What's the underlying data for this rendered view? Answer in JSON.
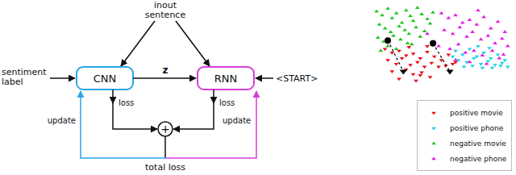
{
  "diagram": {
    "input_sentence": [
      "inout",
      "sentence"
    ],
    "sentiment_label": [
      "sentiment",
      "label"
    ],
    "cnn": "CNN",
    "rnn": "RNN",
    "z": "z",
    "start": "<START>",
    "cnn_loss": "loss",
    "rnn_loss": "loss",
    "sum": "+",
    "total_loss": "total loss",
    "cnn_update": "update",
    "rnn_update": "update"
  },
  "chart_data": {
    "type": "scatter",
    "tick_labels": false,
    "grid": false,
    "legend": "lower right",
    "xlim": [
      0,
      100
    ],
    "ylim": [
      0,
      100
    ],
    "xticks": [],
    "yticks": [],
    "series": [
      {
        "name": "positive movie",
        "color": "#e8101a",
        "marker": "triangle-down",
        "x": [
          10,
          15,
          20,
          25,
          30,
          35,
          40,
          45,
          50,
          55,
          60,
          12,
          18,
          22,
          28,
          33,
          38,
          43,
          48,
          53,
          15,
          25,
          30,
          36,
          42,
          20,
          32,
          35,
          58,
          40,
          27
        ],
        "y": [
          52,
          48,
          50,
          45,
          47,
          42,
          49,
          44,
          40,
          46,
          38,
          40,
          36,
          42,
          35,
          38,
          33,
          37,
          33,
          34,
          28,
          30,
          25,
          27,
          22,
          20,
          18,
          24,
          36,
          55,
          54
        ]
      },
      {
        "name": "positive phone",
        "color": "#1fd3e6",
        "marker": "triangle-down",
        "x": [
          60,
          65,
          70,
          75,
          80,
          85,
          90,
          95,
          62,
          68,
          73,
          78,
          83,
          88,
          93,
          97,
          58,
          66,
          72,
          79,
          86,
          92,
          76,
          84
        ],
        "y": [
          50,
          46,
          52,
          44,
          48,
          42,
          46,
          40,
          40,
          38,
          42,
          36,
          39,
          35,
          37,
          33,
          44,
          33,
          34,
          32,
          32,
          34,
          55,
          53
        ]
      },
      {
        "name": "negative movie",
        "color": "#22c322",
        "marker": "triangle-up",
        "x": [
          4,
          8,
          12,
          15,
          18,
          22,
          25,
          28,
          30,
          33,
          36,
          40,
          6,
          10,
          14,
          20,
          24,
          27,
          32,
          38,
          5,
          9,
          16,
          21,
          26,
          35,
          42,
          12,
          18,
          7,
          29,
          44
        ],
        "y": [
          92,
          88,
          95,
          85,
          90,
          80,
          93,
          87,
          82,
          96,
          89,
          84,
          78,
          74,
          70,
          76,
          72,
          68,
          75,
          71,
          64,
          60,
          66,
          62,
          58,
          65,
          79,
          55,
          52,
          50,
          57,
          91
        ]
      },
      {
        "name": "negative phone",
        "color": "#e21ee2",
        "marker": "triangle-up",
        "x": [
          50,
          55,
          60,
          65,
          70,
          75,
          80,
          85,
          90,
          95,
          52,
          58,
          63,
          68,
          72,
          78,
          83,
          88,
          93,
          97,
          45,
          48,
          56,
          62,
          67,
          73,
          79,
          86,
          91,
          40,
          60,
          70,
          82,
          94,
          76
        ],
        "y": [
          90,
          85,
          88,
          80,
          83,
          78,
          86,
          74,
          81,
          70,
          72,
          68,
          75,
          65,
          70,
          62,
          66,
          58,
          63,
          55,
          60,
          55,
          52,
          57,
          48,
          50,
          45,
          50,
          42,
          68,
          40,
          38,
          36,
          46,
          93
        ]
      }
    ],
    "paths": [
      {
        "x": [
          12,
          23
        ],
        "y": [
          61,
          28
        ]
      },
      {
        "x": [
          44,
          56
        ],
        "y": [
          58,
          28
        ]
      }
    ]
  }
}
